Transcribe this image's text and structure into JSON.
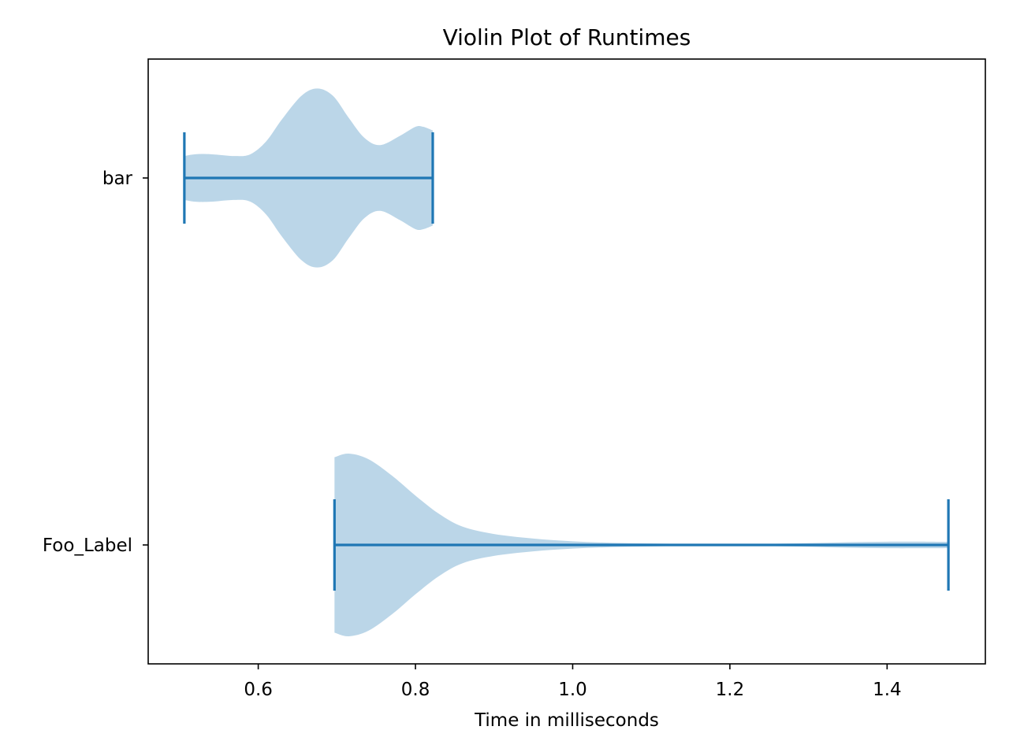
{
  "chart_data": {
    "type": "violin",
    "orientation": "horizontal",
    "title": "Violin Plot of Runtimes",
    "xlabel": "Time in milliseconds",
    "ylabel": "",
    "xlim": [
      0.46,
      1.525
    ],
    "x_ticks": [
      0.6,
      0.8,
      1.0,
      1.2,
      1.4
    ],
    "x_tick_labels": [
      "0.6",
      "0.8",
      "1.0",
      "1.2",
      "1.4"
    ],
    "categories": [
      "Foo_Label",
      "bar"
    ],
    "grid": false,
    "colors": {
      "body": "#1f77b4",
      "body_opacity": 0.3,
      "lines": "#1f77b4",
      "text": "#000000"
    },
    "series": [
      {
        "category": "Foo_Label",
        "min": 0.697,
        "max": 1.478,
        "density_profile": [
          [
            0.697,
            0.48
          ],
          [
            0.715,
            0.5
          ],
          [
            0.74,
            0.47
          ],
          [
            0.77,
            0.38
          ],
          [
            0.8,
            0.27
          ],
          [
            0.83,
            0.17
          ],
          [
            0.86,
            0.1
          ],
          [
            0.9,
            0.06
          ],
          [
            0.95,
            0.035
          ],
          [
            1.0,
            0.02
          ],
          [
            1.05,
            0.012
          ],
          [
            1.1,
            0.008
          ],
          [
            1.15,
            0.005
          ],
          [
            1.2,
            0.004
          ],
          [
            1.25,
            0.006
          ],
          [
            1.3,
            0.01
          ],
          [
            1.35,
            0.015
          ],
          [
            1.4,
            0.018
          ],
          [
            1.45,
            0.018
          ],
          [
            1.478,
            0.017
          ]
        ]
      },
      {
        "category": "bar",
        "min": 0.506,
        "max": 0.822,
        "density_profile": [
          [
            0.506,
            0.12
          ],
          [
            0.52,
            0.13
          ],
          [
            0.54,
            0.13
          ],
          [
            0.57,
            0.12
          ],
          [
            0.59,
            0.13
          ],
          [
            0.61,
            0.2
          ],
          [
            0.63,
            0.32
          ],
          [
            0.655,
            0.45
          ],
          [
            0.675,
            0.49
          ],
          [
            0.695,
            0.45
          ],
          [
            0.715,
            0.33
          ],
          [
            0.735,
            0.22
          ],
          [
            0.755,
            0.18
          ],
          [
            0.78,
            0.23
          ],
          [
            0.8,
            0.28
          ],
          [
            0.81,
            0.28
          ],
          [
            0.822,
            0.26
          ]
        ]
      }
    ]
  }
}
